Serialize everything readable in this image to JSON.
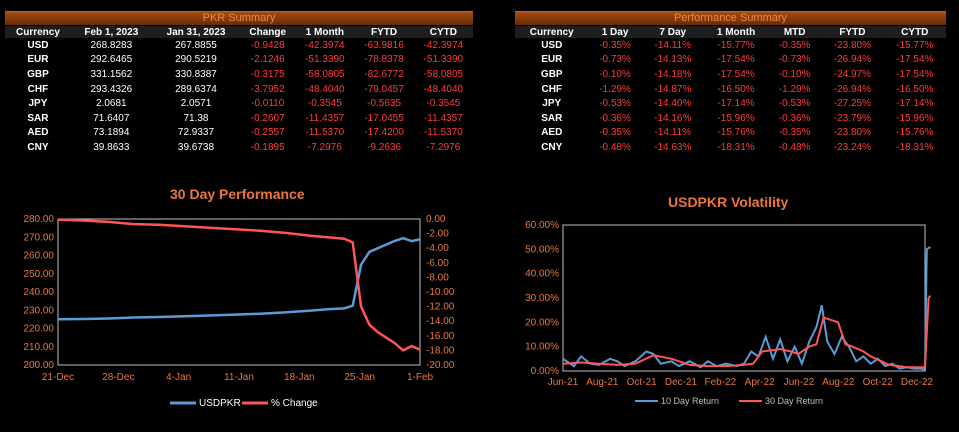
{
  "pkr_summary": {
    "title": "PKR Summary",
    "headers": [
      "Currency",
      "Feb 1, 2023",
      "Jan 31, 2023",
      "Change",
      "1 Month",
      "FYTD",
      "CYTD"
    ],
    "rows": [
      [
        "USD",
        "268.8283",
        "267.8855",
        "-0.9428",
        "-42.3974",
        "-63.9816",
        "-42.3974"
      ],
      [
        "EUR",
        "292.6465",
        "290.5219",
        "-2.1246",
        "-51.3390",
        "-78.8378",
        "-51.3390"
      ],
      [
        "GBP",
        "331.1562",
        "330.8387",
        "-0.3175",
        "-58.0805",
        "-82.6772",
        "-58.0805"
      ],
      [
        "CHF",
        "293.4326",
        "289.6374",
        "-3.7952",
        "-48.4040",
        "-79.0457",
        "-48.4040"
      ],
      [
        "JPY",
        "2.0681",
        "2.0571",
        "-0.0110",
        "-0.3545",
        "-0.5635",
        "-0.3545"
      ],
      [
        "SAR",
        "71.6407",
        "71.38",
        "-0.2607",
        "-11.4357",
        "-17.0455",
        "-11.4357"
      ],
      [
        "AED",
        "73.1894",
        "72.9337",
        "-0.2557",
        "-11.5370",
        "-17.4200",
        "-11.5370"
      ],
      [
        "CNY",
        "39.8633",
        "39.6738",
        "-0.1895",
        "-7.2976",
        "-9.2636",
        "-7.2976"
      ]
    ]
  },
  "performance_summary": {
    "title": "Performance Summary",
    "headers": [
      "Currency",
      "1 Day",
      "7 Day",
      "1 Month",
      "MTD",
      "FYTD",
      "CYTD"
    ],
    "rows": [
      [
        "USD",
        "-0.35%",
        "-14.11%",
        "-15.77%",
        "-0.35%",
        "-23.80%",
        "-15.77%"
      ],
      [
        "EUR",
        "-0.73%",
        "-14.13%",
        "-17.54%",
        "-0.73%",
        "-26.94%",
        "-17.54%"
      ],
      [
        "GBP",
        "-0.10%",
        "-14.18%",
        "-17.54%",
        "-0.10%",
        "-24.97%",
        "-17.54%"
      ],
      [
        "CHF",
        "-1.29%",
        "-14.87%",
        "-16.50%",
        "-1.29%",
        "-26.94%",
        "-16.50%"
      ],
      [
        "JPY",
        "-0.53%",
        "-14.40%",
        "-17.14%",
        "-0.53%",
        "-27.25%",
        "-17.14%"
      ],
      [
        "SAR",
        "-0.36%",
        "-14.16%",
        "-15.96%",
        "-0.36%",
        "-23.79%",
        "-15.96%"
      ],
      [
        "AED",
        "-0.35%",
        "-14.11%",
        "-15.76%",
        "-0.35%",
        "-23.80%",
        "-15.76%"
      ],
      [
        "CNY",
        "-0.48%",
        "-14.63%",
        "-18.31%",
        "-0.48%",
        "-23.24%",
        "-18.31%"
      ]
    ]
  },
  "colors": {
    "accent": "#e9773c",
    "blue_series": "#5b9bd5",
    "red_series": "#ff5555",
    "negative_text": "#ff3b3b"
  },
  "chart_data": [
    {
      "type": "line",
      "title": "30 Day Performance",
      "x_ticks": [
        "21-Dec",
        "28-Dec",
        "4-Jan",
        "11-Jan",
        "18-Jan",
        "25-Jan",
        "1-Feb"
      ],
      "y_left": {
        "ticks": [
          "200.00",
          "210.00",
          "220.00",
          "230.00",
          "240.00",
          "250.00",
          "260.00",
          "270.00",
          "280.00"
        ],
        "lim": [
          200,
          280
        ]
      },
      "y_right": {
        "ticks": [
          "0.00",
          "-2.00",
          "-4.00",
          "-6.00",
          "-8.00",
          "-10.00",
          "-12.00",
          "-14.00",
          "-16.00",
          "-18.00",
          "-20.00"
        ],
        "lim": [
          -20,
          0
        ]
      },
      "x_range": [
        0,
        43
      ],
      "series": [
        {
          "name": "USDPKR",
          "axis": "left",
          "color": "#5b9bd5",
          "points": [
            [
              0,
              225.1
            ],
            [
              3,
              225.2
            ],
            [
              6,
              225.5
            ],
            [
              9,
              226.0
            ],
            [
              12,
              226.3
            ],
            [
              15,
              226.7
            ],
            [
              18,
              227.1
            ],
            [
              21,
              227.6
            ],
            [
              24,
              228.1
            ],
            [
              27,
              228.8
            ],
            [
              30,
              229.8
            ],
            [
              32,
              230.5
            ],
            [
              34,
              231.0
            ],
            [
              35,
              232.5
            ],
            [
              36,
              255.0
            ],
            [
              37,
              262.0
            ],
            [
              38,
              264.0
            ],
            [
              40,
              268.0
            ],
            [
              41,
              269.5
            ],
            [
              42,
              267.9
            ],
            [
              43,
              268.8
            ]
          ]
        },
        {
          "name": "% Change",
          "axis": "right",
          "color": "#ff5555",
          "points": [
            [
              0,
              -0.1
            ],
            [
              3,
              -0.2
            ],
            [
              6,
              -0.4
            ],
            [
              9,
              -0.7
            ],
            [
              12,
              -0.8
            ],
            [
              15,
              -1.0
            ],
            [
              18,
              -1.2
            ],
            [
              21,
              -1.4
            ],
            [
              24,
              -1.6
            ],
            [
              27,
              -1.9
            ],
            [
              30,
              -2.3
            ],
            [
              32,
              -2.5
            ],
            [
              34,
              -2.7
            ],
            [
              35,
              -3.2
            ],
            [
              36,
              -12.0
            ],
            [
              37,
              -14.5
            ],
            [
              38,
              -15.5
            ],
            [
              40,
              -17.0
            ],
            [
              41,
              -18.0
            ],
            [
              42,
              -17.4
            ],
            [
              43,
              -17.9
            ]
          ]
        }
      ],
      "legend": "bottom"
    },
    {
      "type": "line",
      "title": "USDPKR Volatility",
      "x_ticks": [
        "Jun-21",
        "Aug-21",
        "Oct-21",
        "Dec-21",
        "Feb-22",
        "Apr-22",
        "Jun-22",
        "Aug-22",
        "Oct-22",
        "Dec-22"
      ],
      "y_ticks": [
        "0.00%",
        "10.00%",
        "20.00%",
        "30.00%",
        "40.00%",
        "50.00%",
        "60.00%"
      ],
      "ylim": [
        0,
        60
      ],
      "x_range": [
        0,
        20
      ],
      "series": [
        {
          "name": "10 Day Return",
          "color": "#5b9bd5",
          "points": [
            [
              0,
              5
            ],
            [
              0.6,
              2
            ],
            [
              1,
              6
            ],
            [
              1.5,
              3
            ],
            [
              2,
              2.5
            ],
            [
              2.6,
              5
            ],
            [
              3,
              4
            ],
            [
              3.4,
              2
            ],
            [
              4,
              4
            ],
            [
              4.6,
              8
            ],
            [
              5,
              7
            ],
            [
              5.4,
              3
            ],
            [
              6,
              4
            ],
            [
              6.4,
              2
            ],
            [
              7,
              4
            ],
            [
              7.6,
              1.5
            ],
            [
              8,
              4
            ],
            [
              8.5,
              2
            ],
            [
              9,
              3
            ],
            [
              9.6,
              2
            ],
            [
              10,
              3
            ],
            [
              10.4,
              8
            ],
            [
              10.8,
              6
            ],
            [
              11.2,
              14
            ],
            [
              11.6,
              5
            ],
            [
              12,
              13
            ],
            [
              12.4,
              4
            ],
            [
              12.8,
              10
            ],
            [
              13.2,
              3
            ],
            [
              13.6,
              12
            ],
            [
              14,
              18
            ],
            [
              14.3,
              27
            ],
            [
              14.6,
              12
            ],
            [
              15,
              7
            ],
            [
              15.4,
              14
            ],
            [
              15.8,
              10
            ],
            [
              16.2,
              4
            ],
            [
              16.6,
              6
            ],
            [
              17,
              3
            ],
            [
              17.4,
              5
            ],
            [
              17.8,
              2
            ],
            [
              18.2,
              3
            ],
            [
              18.6,
              1
            ],
            [
              19,
              1.5
            ],
            [
              19.4,
              1
            ],
            [
              19.8,
              1
            ],
            [
              20,
              0.5
            ],
            [
              20.1,
              50
            ],
            [
              20.3,
              51
            ]
          ]
        },
        {
          "name": "30 Day Return",
          "color": "#ff5555",
          "points": [
            [
              0,
              3
            ],
            [
              1,
              3.5
            ],
            [
              2,
              3
            ],
            [
              3,
              2.5
            ],
            [
              4,
              3
            ],
            [
              5,
              6.5
            ],
            [
              6,
              5
            ],
            [
              7,
              2.5
            ],
            [
              8,
              2
            ],
            [
              9,
              2
            ],
            [
              10,
              2.5
            ],
            [
              10.5,
              3
            ],
            [
              11,
              8
            ],
            [
              12,
              9
            ],
            [
              12.6,
              8
            ],
            [
              13,
              7
            ],
            [
              13.6,
              10
            ],
            [
              14,
              11
            ],
            [
              14.4,
              22
            ],
            [
              14.8,
              21
            ],
            [
              15.2,
              20
            ],
            [
              15.6,
              11
            ],
            [
              16,
              10
            ],
            [
              16.6,
              8
            ],
            [
              17,
              6
            ],
            [
              17.6,
              4
            ],
            [
              18,
              2.5
            ],
            [
              18.6,
              2
            ],
            [
              19,
              1.5
            ],
            [
              19.6,
              1.5
            ],
            [
              20,
              1.5
            ],
            [
              20.2,
              30
            ],
            [
              20.3,
              31
            ]
          ]
        }
      ],
      "legend": "bottom"
    }
  ]
}
